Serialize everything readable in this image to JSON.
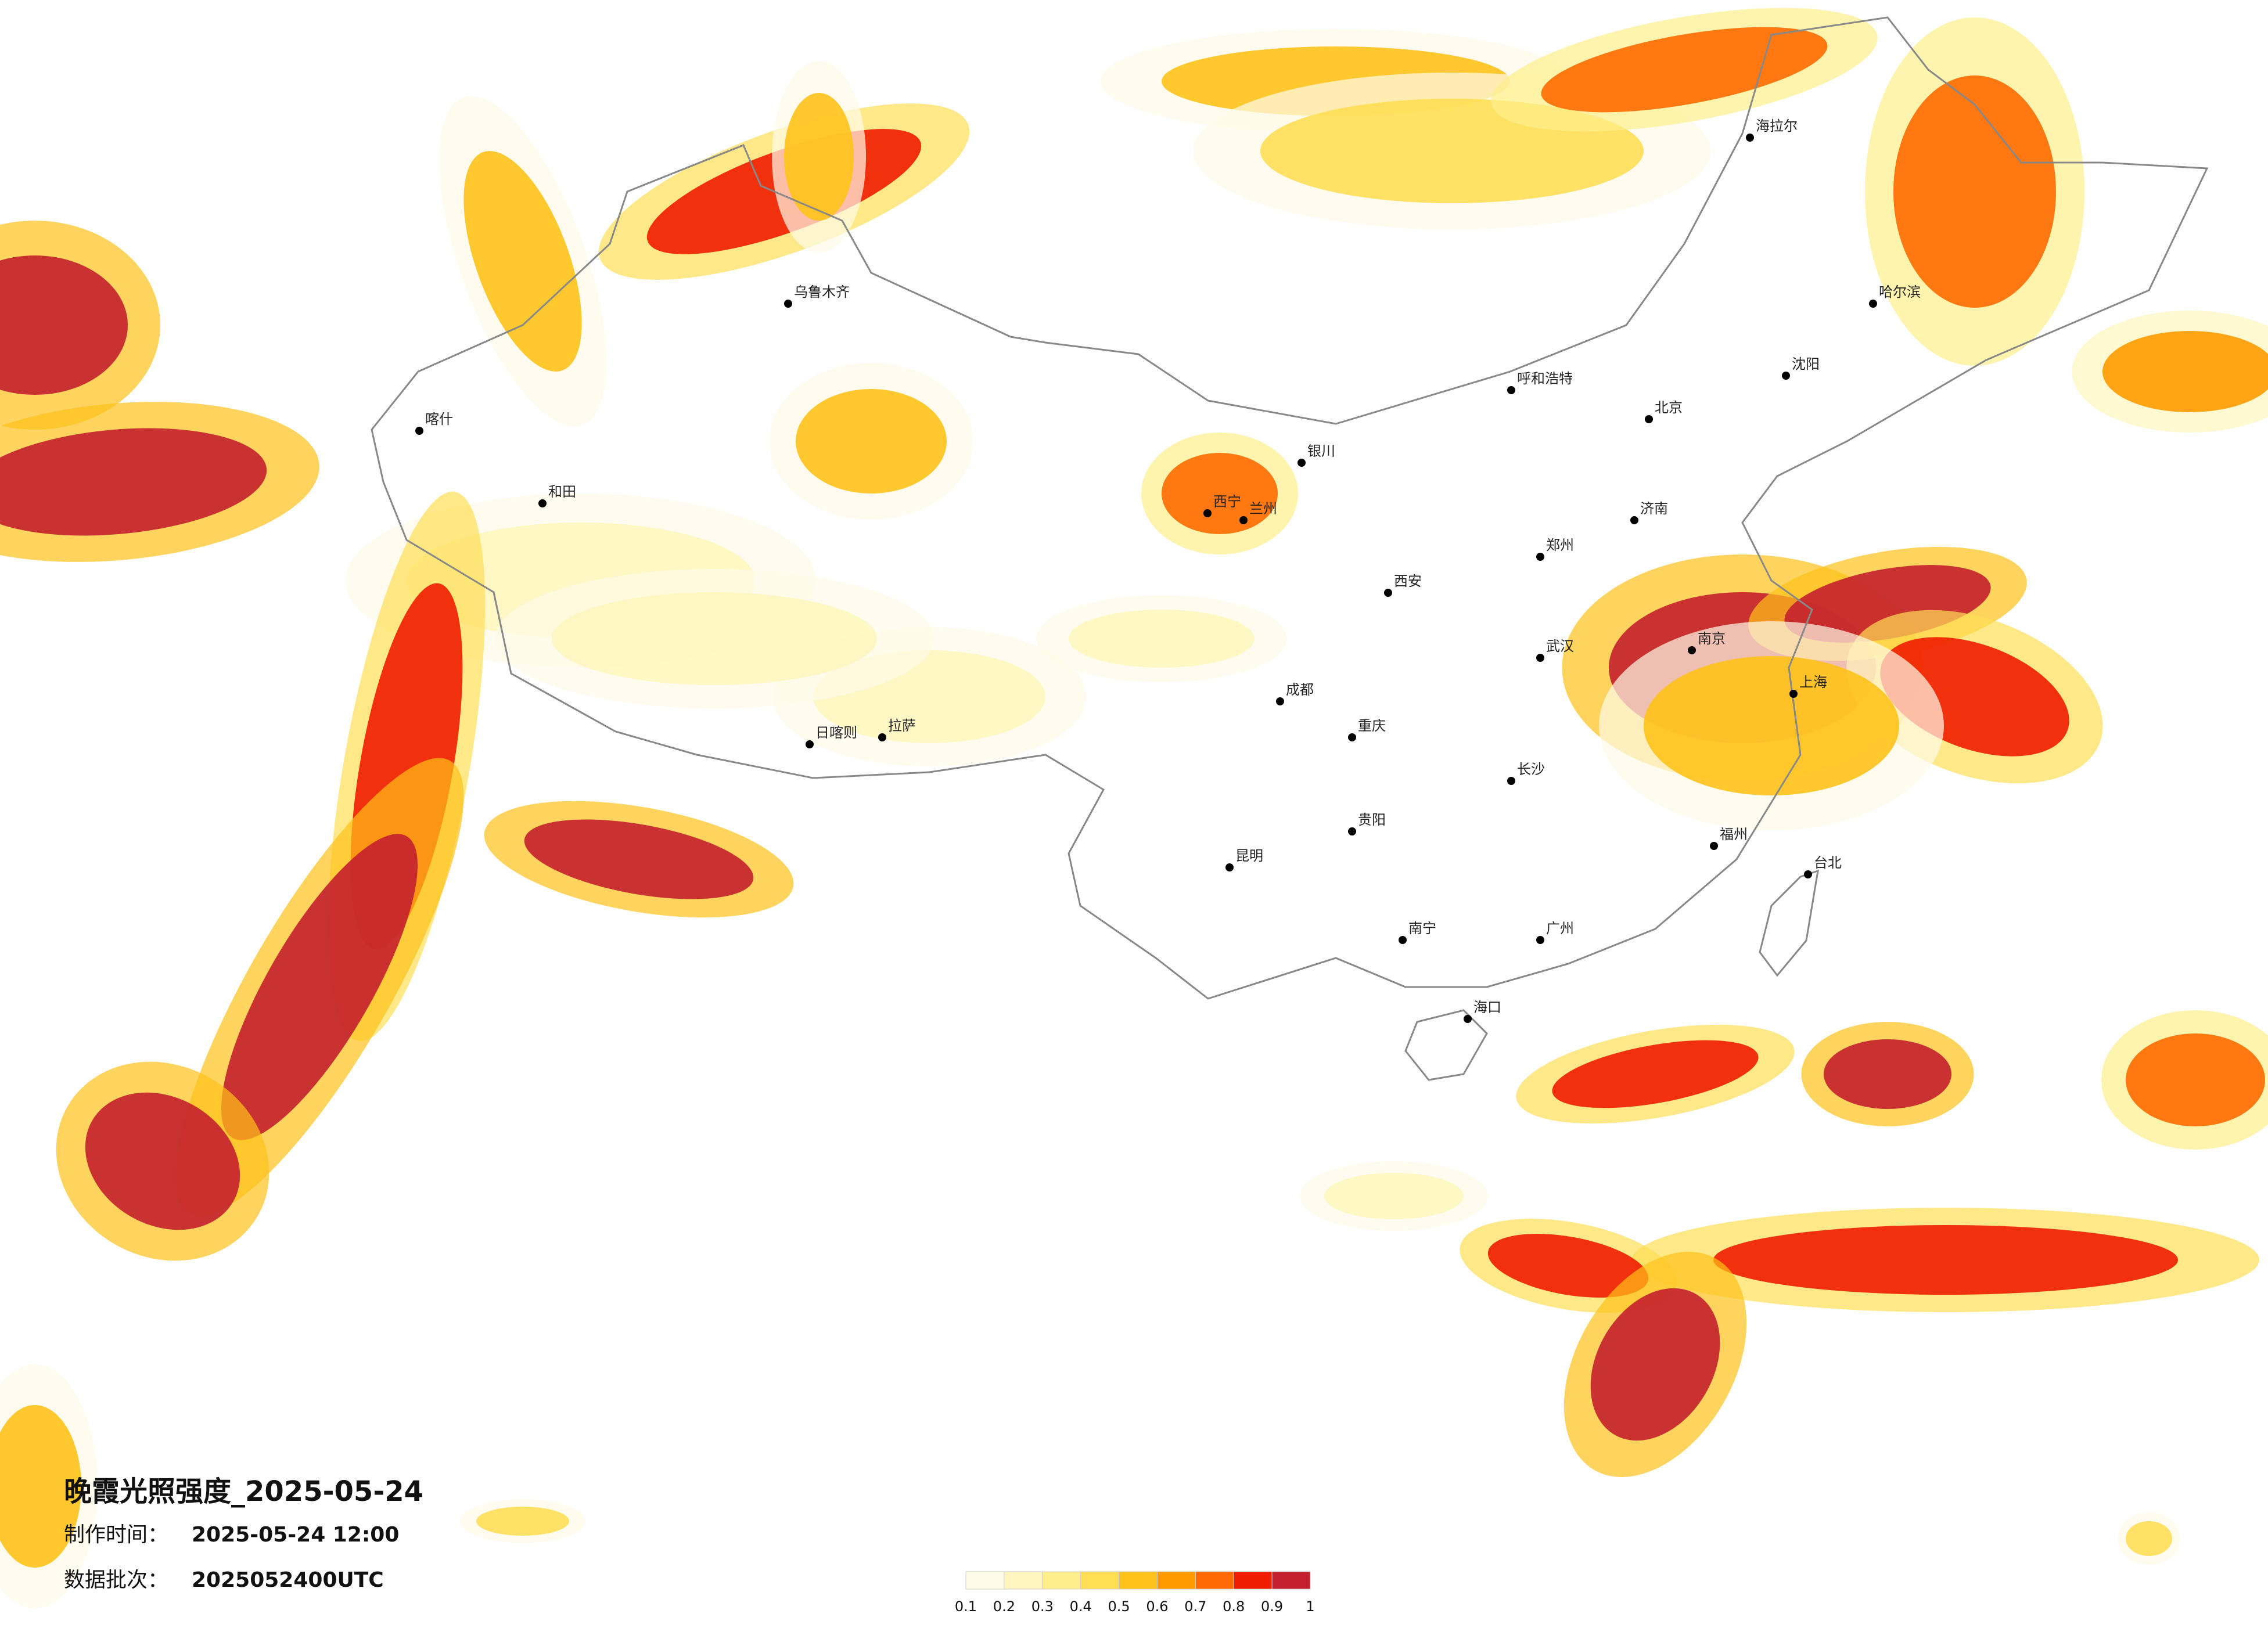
{
  "title": "晚霞光照强度_2025-05-24",
  "made_time": {
    "label": "制作时间：",
    "value": "2025-05-24 12:00"
  },
  "batch": {
    "label": "数据批次：",
    "value": "2025052400UTC"
  },
  "legend": {
    "ticks": [
      0.1,
      0.2,
      0.3,
      0.4,
      0.5,
      0.6,
      0.7,
      0.8,
      0.9,
      1
    ],
    "colors": [
      "#fffbe8",
      "#fff6bf",
      "#ffef8c",
      "#ffde55",
      "#ffc21a",
      "#ff9a00",
      "#ff6a00",
      "#f01d00",
      "#c4202e"
    ]
  },
  "cities": [
    "北京",
    "上海",
    "广州",
    "武汉",
    "成都",
    "西安",
    "乌鲁木齐",
    "拉萨",
    "哈尔滨",
    "昆明",
    "兰州",
    "重庆",
    "海口",
    "台北",
    "南宁",
    "长沙",
    "郑州",
    "呼和浩特",
    "沈阳",
    "喀什",
    "和田",
    "西宁",
    "银川",
    "贵阳",
    "福州",
    "南京",
    "济南",
    "海拉尔",
    "日喀则"
  ]
}
